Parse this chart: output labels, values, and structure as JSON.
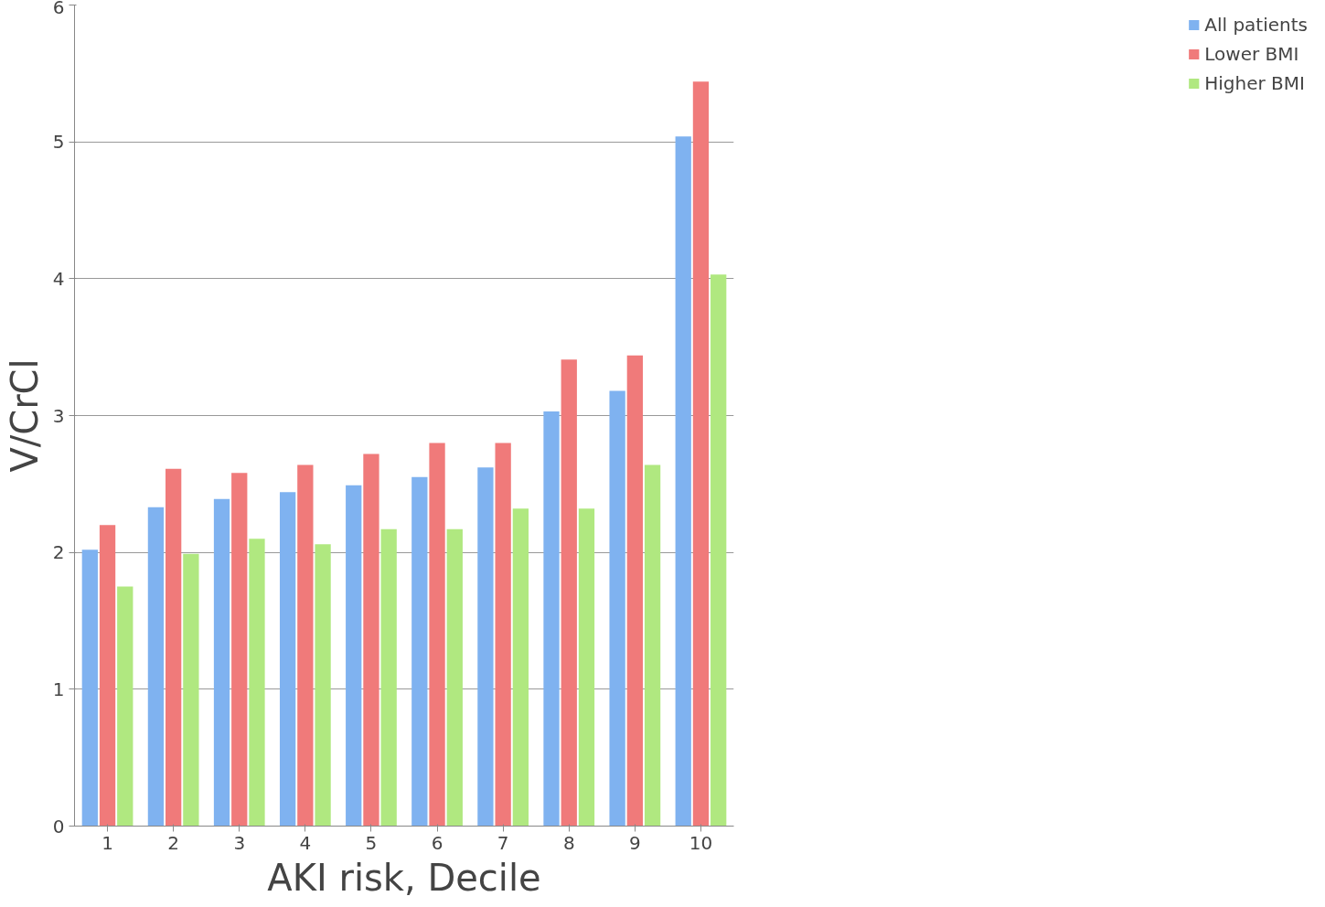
{
  "chart_data": {
    "type": "bar",
    "xlabel": "AKI risk, Decile",
    "ylabel": "V/CrCl",
    "categories": [
      "1",
      "2",
      "3",
      "4",
      "5",
      "6",
      "7",
      "8",
      "9",
      "10"
    ],
    "series": [
      {
        "name": "All patients",
        "color": "#7fb2f0",
        "values": [
          2.02,
          2.33,
          2.39,
          2.44,
          2.49,
          2.55,
          2.62,
          3.03,
          3.18,
          5.04
        ]
      },
      {
        "name": "Lower BMI",
        "color": "#f07a7a",
        "values": [
          2.2,
          2.61,
          2.58,
          2.64,
          2.72,
          2.8,
          2.8,
          3.41,
          3.44,
          5.44
        ]
      },
      {
        "name": "Higher BMI",
        "color": "#b0e880",
        "values": [
          1.75,
          1.99,
          2.1,
          2.06,
          2.17,
          2.17,
          2.32,
          2.32,
          2.64,
          4.03
        ]
      }
    ],
    "ylim": [
      0,
      6
    ],
    "yticks": [
      0,
      1,
      2,
      3,
      4,
      5,
      6
    ],
    "grid": "y",
    "legend": "right"
  }
}
